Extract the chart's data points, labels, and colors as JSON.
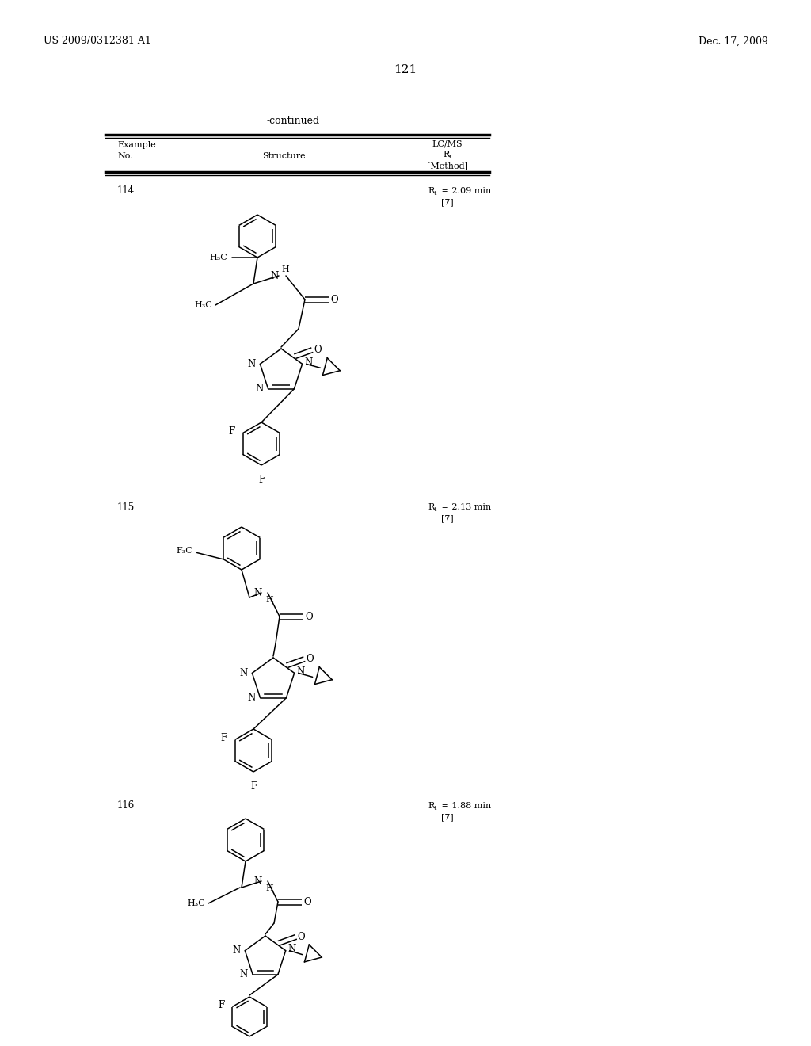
{
  "page_number": "121",
  "patent_number": "US 2009/0312381 A1",
  "patent_date": "Dec. 17, 2009",
  "table_title": "-continued",
  "background_color": "#ffffff",
  "text_color": "#000000",
  "ex114_no": "114",
  "ex114_rt": "R",
  "ex114_rt2": "= 2.09 min",
  "ex114_method": "[7]",
  "ex115_no": "115",
  "ex115_rt": "R",
  "ex115_rt2": "= 2.13 min",
  "ex115_method": "[7]",
  "ex116_no": "116",
  "ex116_rt": "R",
  "ex116_rt2": "= 1.88 min",
  "ex116_method": "[7]"
}
